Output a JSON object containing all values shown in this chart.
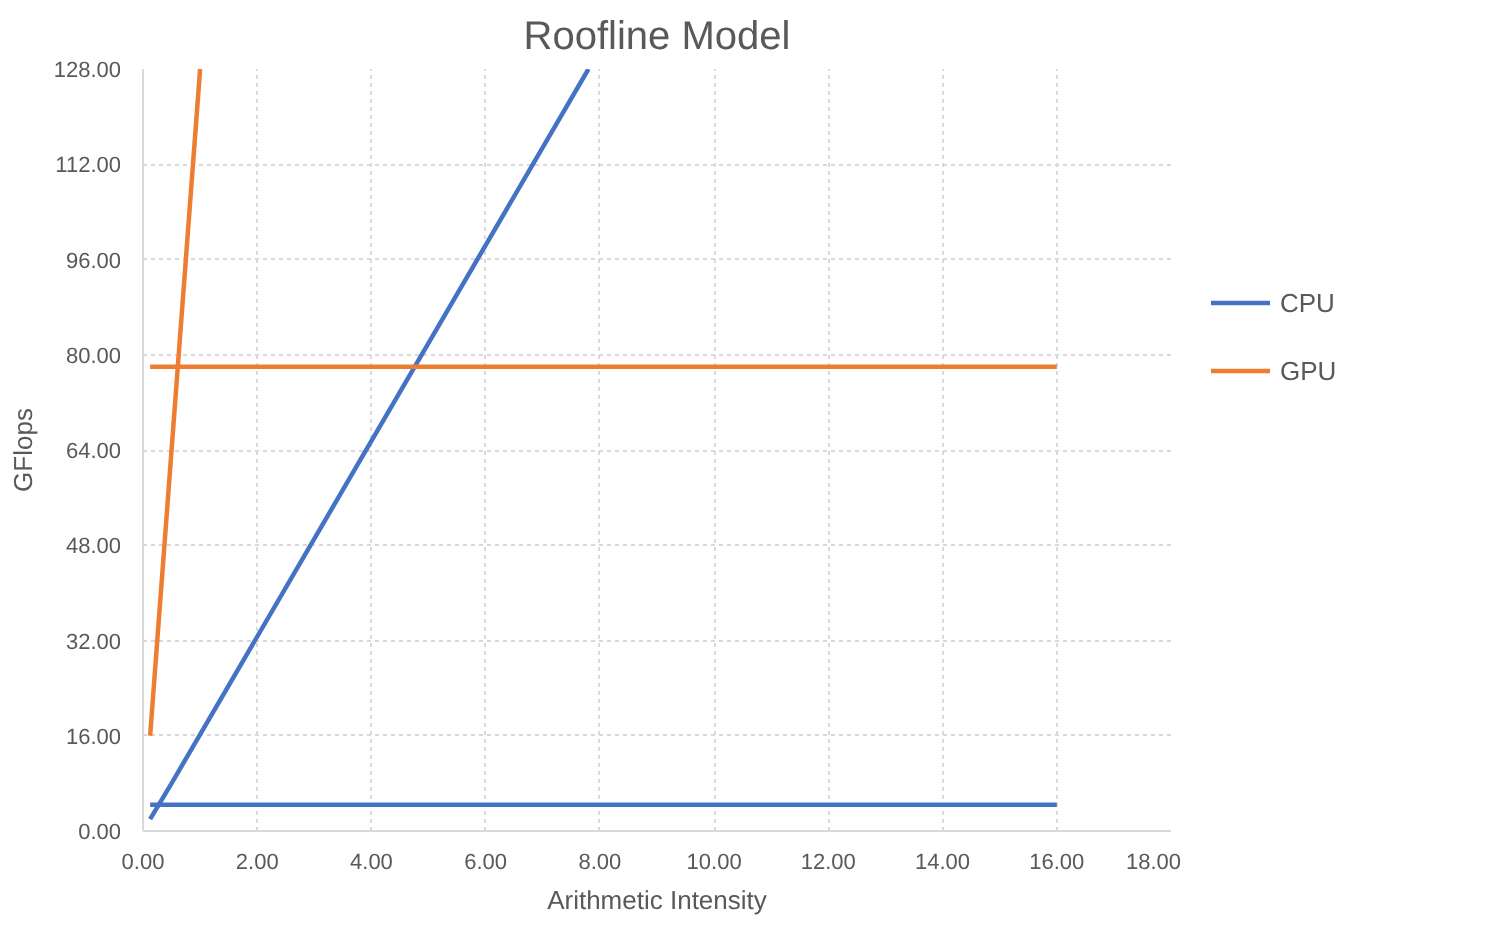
{
  "chart_data": {
    "type": "line",
    "title": "Roofline Model",
    "xlabel": "Arithmetic Intensity",
    "ylabel": "GFlops",
    "series": [
      {
        "name": "CPU",
        "color": "#4472c4",
        "x": [
          0.125,
          0.5,
          7.8
        ],
        "values": [
          2,
          8,
          128
        ]
      },
      {
        "name": "GPU",
        "color": "#ed7d31",
        "x": [
          0.125,
          1.0
        ],
        "values": [
          16,
          128
        ]
      },
      {
        "color": "#4472c4",
        "x": [
          0.125,
          16
        ],
        "values": [
          4.4,
          4.4
        ]
      },
      {
        "color": "#ed7d31",
        "x": [
          0.125,
          16
        ],
        "values": [
          78,
          78
        ]
      }
    ],
    "xlim": [
      0,
      18
    ],
    "xticks": [
      {
        "value": 0,
        "label": "0.00"
      },
      {
        "value": 2,
        "label": "2.00"
      },
      {
        "value": 4,
        "label": "4.00"
      },
      {
        "value": 6,
        "label": "6.00"
      },
      {
        "value": 8,
        "label": "8.00"
      },
      {
        "value": 10,
        "label": "10.00"
      },
      {
        "value": 12,
        "label": "12.00"
      },
      {
        "value": 14,
        "label": "14.00"
      },
      {
        "value": 16,
        "label": "16.00"
      },
      {
        "value": 18,
        "label": "18.00"
      }
    ],
    "ylim": [
      0,
      128
    ],
    "yticks": [
      {
        "value": 0,
        "label": "0.00"
      },
      {
        "value": 16,
        "label": "16.00"
      },
      {
        "value": 32,
        "label": "32.00"
      },
      {
        "value": 48,
        "label": "48.00"
      },
      {
        "value": 64,
        "label": "64.00"
      },
      {
        "value": 80,
        "label": "80.00"
      },
      {
        "value": 96,
        "label": "96.00"
      },
      {
        "value": 112,
        "label": "112.00"
      },
      {
        "value": 128,
        "label": "128.00"
      }
    ],
    "grid": true,
    "legend": "right",
    "marker": "none",
    "line_style": "solid"
  }
}
